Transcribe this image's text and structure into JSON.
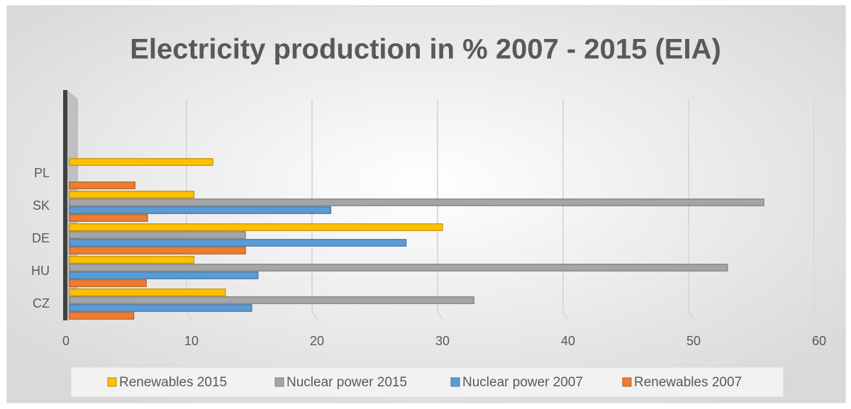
{
  "chart_data": {
    "type": "bar",
    "orientation": "horizontal",
    "title": "Electricity production in % 2007 - 2015 (EIA)",
    "categories": [
      "CZ",
      "HU",
      "DE",
      "SK",
      "PL"
    ],
    "series": [
      {
        "name": "Renewables 2007",
        "color": "#ed7d31",
        "values": [
          5.4,
          6.4,
          14.3,
          6.5,
          5.5
        ]
      },
      {
        "name": "Nuclear power 2007",
        "color": "#5b9bd5",
        "values": [
          14.8,
          15.3,
          27.1,
          21.1,
          0
        ]
      },
      {
        "name": "Nuclear power 2015",
        "color": "#a5a5a5",
        "values": [
          32.5,
          52.7,
          14.3,
          55.6,
          0
        ]
      },
      {
        "name": "Renewables 2015",
        "color": "#ffc000",
        "values": [
          12.7,
          10.2,
          30,
          10.2,
          11.7
        ]
      }
    ],
    "xlim": [
      0,
      60
    ],
    "xticks": [
      0,
      10,
      20,
      30,
      40,
      50,
      60
    ],
    "grid": true,
    "legend": "bottom"
  }
}
